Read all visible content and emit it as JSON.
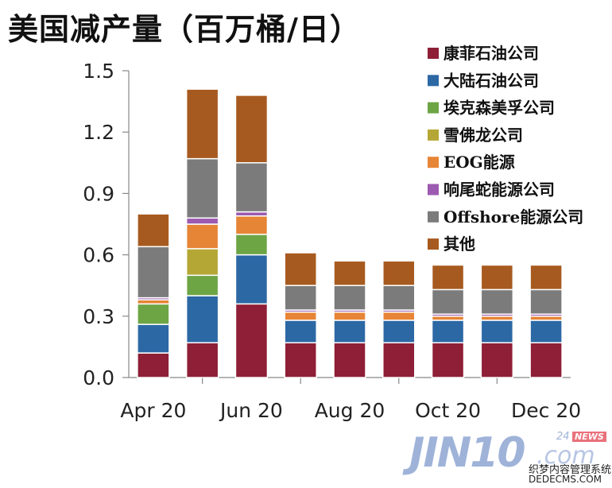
{
  "chart_data": {
    "type": "bar",
    "stacked": true,
    "title": "美国减产量（百万桶/日）",
    "categories": [
      "Apr 20",
      "May 20",
      "Jun 20",
      "Jul 20",
      "Aug 20",
      "Sep 20",
      "Oct 20",
      "Nov 20",
      "Dec 20"
    ],
    "x_tick_labels": [
      "Apr 20",
      "",
      "Jun 20",
      "",
      "Aug 20",
      "",
      "Oct 20",
      "",
      "Dec 20"
    ],
    "ylim": [
      0,
      1.5
    ],
    "y_ticks": [
      "0.0",
      "0.3",
      "0.6",
      "0.9",
      "1.2",
      "1.5"
    ],
    "grid": false,
    "legend_position": "top-right",
    "series": [
      {
        "name": "康菲石油公司",
        "color": "#8e1f36",
        "values": [
          0.12,
          0.17,
          0.36,
          0.17,
          0.17,
          0.17,
          0.17,
          0.17,
          0.17
        ]
      },
      {
        "name": "大陆石油公司",
        "color": "#2c68a4",
        "values": [
          0.14,
          0.23,
          0.24,
          0.11,
          0.11,
          0.11,
          0.11,
          0.11,
          0.11
        ]
      },
      {
        "name": "埃克森美孚公司",
        "color": "#6da545",
        "values": [
          0.1,
          0.1,
          0.1,
          0.0,
          0.0,
          0.0,
          0.0,
          0.0,
          0.0
        ]
      },
      {
        "name": "雪佛龙公司",
        "color": "#b5a736",
        "values": [
          0.0,
          0.13,
          0.0,
          0.0,
          0.0,
          0.0,
          0.0,
          0.0,
          0.0
        ]
      },
      {
        "name": "EOG能源",
        "color": "#e68536",
        "values": [
          0.02,
          0.12,
          0.09,
          0.04,
          0.04,
          0.04,
          0.02,
          0.02,
          0.02
        ]
      },
      {
        "name": "响尾蛇能源公司",
        "color": "#9c5ab0",
        "values": [
          0.01,
          0.03,
          0.02,
          0.01,
          0.01,
          0.01,
          0.01,
          0.01,
          0.01
        ]
      },
      {
        "name": "Offshore能源公司",
        "color": "#7b7b7b",
        "values": [
          0.25,
          0.29,
          0.24,
          0.12,
          0.12,
          0.12,
          0.12,
          0.12,
          0.12
        ]
      },
      {
        "name": "其他",
        "color": "#a75a1f",
        "values": [
          0.16,
          0.34,
          0.33,
          0.16,
          0.12,
          0.12,
          0.12,
          0.12,
          0.12
        ]
      }
    ]
  },
  "watermark": {
    "logo_text": "JIN10",
    "logo_suffix": ".com",
    "badge_num": "24",
    "badge_text": "NEWS",
    "site_cn": "织梦内容管理系统",
    "site_url": "DEDECMS.COM"
  }
}
